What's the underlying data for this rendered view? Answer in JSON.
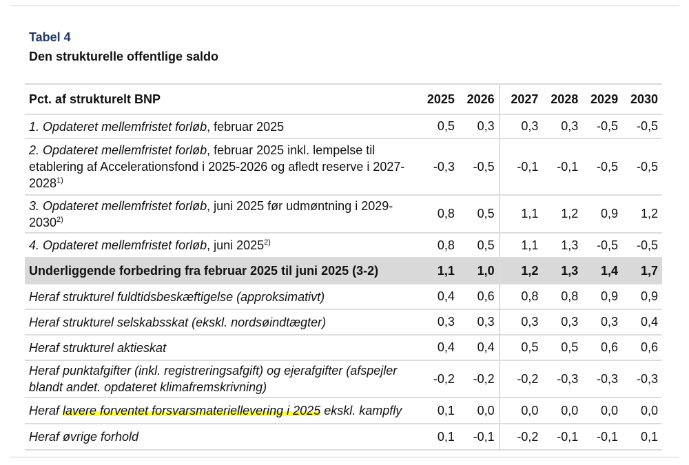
{
  "header": {
    "table_label": "Tabel 4",
    "table_title": "Den strukturelle offentlige saldo"
  },
  "table": {
    "header_label": "Pct. af strukturelt BNP",
    "years": [
      "2025",
      "2026",
      "2027",
      "2028",
      "2029",
      "2030"
    ],
    "rows": [
      {
        "label_italic": "1. Opdateret mellemfristet forløb",
        "label_rest": ", februar 2025",
        "sup": "",
        "values": [
          "0,5",
          "0,3",
          "0,3",
          "0,3",
          "-0,5",
          "-0,5"
        ]
      },
      {
        "label_italic": "2. Opdateret mellemfristet forløb",
        "label_rest": ", februar 2025 inkl. lempelse til etablering af Accelerationsfond i 2025-2026 og afledt reserve i 2027-2028",
        "sup": "1)",
        "values": [
          "-0,3",
          "-0,5",
          "-0,1",
          "-0,1",
          "-0,5",
          "-0,5"
        ]
      },
      {
        "label_italic": "3. Opdateret mellemfristet forløb",
        "label_rest": ", juni 2025 før udmøntning i 2029-2030",
        "sup": "2)",
        "values": [
          "0,8",
          "0,5",
          "1,1",
          "1,2",
          "0,9",
          "1,2"
        ]
      },
      {
        "label_italic": "4. Opdateret mellemfristet forløb",
        "label_rest": ", juni 2025",
        "sup": "2)",
        "values": [
          "0,8",
          "0,5",
          "1,1",
          "1,3",
          "-0,5",
          "-0,5"
        ]
      },
      {
        "label": "Underliggende forbedring fra februar 2025 til juni 2025 (3-2)",
        "values": [
          "1,1",
          "1,0",
          "1,2",
          "1,3",
          "1,4",
          "1,7"
        ]
      },
      {
        "label": "Heraf strukturel fuldtidsbeskæftigelse (approksimativt)",
        "values": [
          "0,4",
          "0,6",
          "0,8",
          "0,8",
          "0,9",
          "0,9"
        ]
      },
      {
        "label": "Heraf strukturel selskabsskat (ekskl. nordsøindtægter)",
        "values": [
          "0,3",
          "0,3",
          "0,3",
          "0,3",
          "0,3",
          "0,4"
        ]
      },
      {
        "label": "Heraf strukturel aktieskat",
        "values": [
          "0,4",
          "0,4",
          "0,5",
          "0,5",
          "0,6",
          "0,6"
        ]
      },
      {
        "label": "Heraf punktafgifter (inkl. registreringsafgift) og ejerafgifter (afspejler blandt andet. opdateret klimafremskrivning)",
        "values": [
          "-0,2",
          "-0,2",
          "-0,2",
          "-0,3",
          "-0,3",
          "-0,3"
        ]
      },
      {
        "label_pre": "Heraf ",
        "label_highlight": "lavere forventet forsvarsmateriellevering i 2025",
        "label_post": " ekskl. kampfly",
        "values": [
          "0,1",
          "0,0",
          "0,0",
          "0,0",
          "0,0",
          "0,0"
        ]
      },
      {
        "label": "Heraf øvrige forhold",
        "values": [
          "0,1",
          "-0,1",
          "-0,2",
          "-0,1",
          "-0,1",
          "0,1"
        ]
      }
    ]
  },
  "colors": {
    "label_blue": "#1f3864",
    "bold_row_bg": "#d9d9d9",
    "highlight": "#ffff33"
  }
}
